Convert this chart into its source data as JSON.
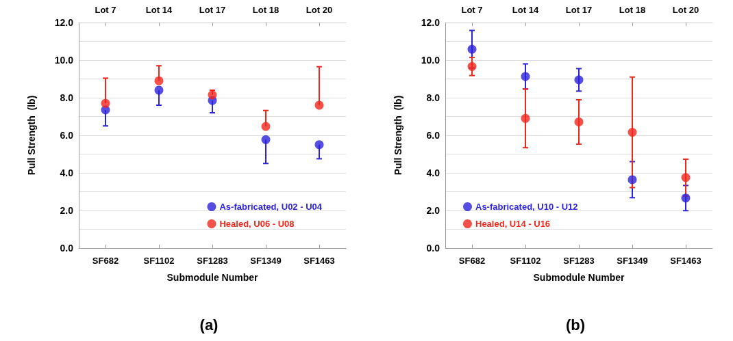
{
  "chart_data": [
    {
      "type": "scatter",
      "title": "(a)",
      "xlabel": "Submodule Number",
      "ylabel": "Pull Strength  (lb)",
      "categories": [
        "SF682",
        "SF1102",
        "SF1283",
        "SF1349",
        "SF1463"
      ],
      "annotations": [
        {
          "text": "Lot 7",
          "x": "SF682"
        },
        {
          "text": "Lot 14",
          "x": "SF1102"
        },
        {
          "text": "Lot 17",
          "x": "SF1283"
        },
        {
          "text": "Lot 18",
          "x": "SF1349"
        },
        {
          "text": "Lot 20",
          "x": "SF1463"
        }
      ],
      "series": [
        {
          "name": "As-fabricated, U02 - U04",
          "color": "#2b22d9",
          "values": [
            7.35,
            8.4,
            7.85,
            5.77,
            5.5
          ],
          "errors": [
            [
              6.5,
              7.35
            ],
            [
              7.6,
              8.4
            ],
            [
              7.2,
              7.85
            ],
            [
              4.5,
              5.77
            ],
            [
              4.75,
              5.5
            ]
          ]
        },
        {
          "name": "Healed, U06 - U08",
          "color": "#f0261b",
          "values": [
            7.7,
            8.9,
            8.15,
            6.47,
            7.6
          ],
          "errors": [
            [
              7.7,
              9.04
            ],
            [
              8.9,
              9.7
            ],
            [
              8.15,
              8.4
            ],
            [
              6.47,
              7.32
            ],
            [
              7.6,
              9.65
            ]
          ]
        }
      ],
      "ylim": [
        0,
        12
      ],
      "yticks": [
        {
          "value": 0,
          "label": "0.0"
        },
        {
          "value": 1,
          "label": null
        },
        {
          "value": 2,
          "label": "2.0"
        },
        {
          "value": 3,
          "label": null
        },
        {
          "value": 4,
          "label": "4.0"
        },
        {
          "value": 5,
          "label": null
        },
        {
          "value": 6,
          "label": "6.0"
        },
        {
          "value": 7,
          "label": null
        },
        {
          "value": 8,
          "label": "8.0"
        },
        {
          "value": 9,
          "label": null
        },
        {
          "value": 10,
          "label": "10.0"
        },
        {
          "value": 11,
          "label": null
        },
        {
          "value": 12,
          "label": "12.0"
        }
      ],
      "grid": "y",
      "legend": "bottom right",
      "marker": "circle"
    },
    {
      "type": "scatter",
      "title": "(b)",
      "xlabel": "Submodule Number",
      "ylabel": "Pull Strength  (lb)",
      "categories": [
        "SF682",
        "SF1102",
        "SF1283",
        "SF1349",
        "SF1463"
      ],
      "annotations": [
        {
          "text": "Lot 7",
          "x": "SF682"
        },
        {
          "text": "Lot 14",
          "x": "SF1102"
        },
        {
          "text": "Lot 17",
          "x": "SF1283"
        },
        {
          "text": "Lot 18",
          "x": "SF1349"
        },
        {
          "text": "Lot 20",
          "x": "SF1463"
        }
      ],
      "series": [
        {
          "name": "As-fabricated, U10 - U12",
          "color": "#2b22d9",
          "values": [
            10.58,
            9.13,
            8.95,
            3.64,
            2.66
          ],
          "errors": [
            1.0,
            0.67,
            0.6,
            0.96,
            0.67
          ]
        },
        {
          "name": "Healed, U14 - U16",
          "color": "#f0261b",
          "values": [
            9.66,
            6.9,
            6.71,
            6.16,
            3.75
          ],
          "errors": [
            0.48,
            1.56,
            1.18,
            2.94,
            0.98
          ]
        }
      ],
      "ylim": [
        0,
        12
      ],
      "yticks": [
        {
          "value": 0,
          "label": "0.0"
        },
        {
          "value": 1,
          "label": null
        },
        {
          "value": 2,
          "label": "2.0"
        },
        {
          "value": 3,
          "label": null
        },
        {
          "value": 4,
          "label": "4.0"
        },
        {
          "value": 5,
          "label": null
        },
        {
          "value": 6,
          "label": "6.0"
        },
        {
          "value": 7,
          "label": null
        },
        {
          "value": 8,
          "label": "8.0"
        },
        {
          "value": 9,
          "label": null
        },
        {
          "value": 10,
          "label": "10.0"
        },
        {
          "value": 11,
          "label": null
        },
        {
          "value": 12,
          "label": "12.0"
        }
      ],
      "grid": "y",
      "legend": "bottom left",
      "marker": "circle"
    }
  ]
}
